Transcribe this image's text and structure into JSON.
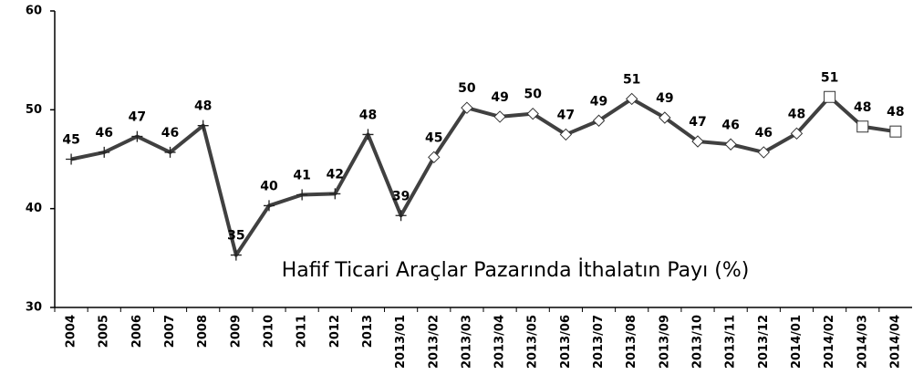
{
  "chart_data": {
    "type": "line",
    "annotation": "Hafif Ticari Araçlar Pazarında İthalatın Payı (%)",
    "categories": [
      "2004",
      "2005",
      "2006",
      "2007",
      "2008",
      "2009",
      "2010",
      "2011",
      "2012",
      "2013",
      "2013/01",
      "2013/02",
      "2013/03",
      "2013/04",
      "2013/05",
      "2013/06",
      "2013/07",
      "2013/08",
      "2013/09",
      "2013/10",
      "2013/11",
      "2013/12",
      "2014/01",
      "2014/02",
      "2014/03",
      "2014/04"
    ],
    "values": [
      45.0,
      45.7,
      47.3,
      45.7,
      48.4,
      35.3,
      40.3,
      41.4,
      41.5,
      47.5,
      39.3,
      45.2,
      50.2,
      49.3,
      49.6,
      47.5,
      48.9,
      51.1,
      49.2,
      46.8,
      46.5,
      45.7,
      47.6,
      51.3,
      48.3,
      47.8
    ],
    "value_labels": [
      "45",
      "46",
      "47",
      "46",
      "48",
      "35",
      "40",
      "41",
      "42",
      "48",
      "39",
      "45",
      "50",
      "49",
      "50",
      "47",
      "49",
      "51",
      "49",
      "47",
      "46",
      "46",
      "48",
      "51",
      "48",
      "48"
    ],
    "markers": [
      "plus",
      "plus",
      "plus",
      "plus",
      "plus",
      "plus",
      "plus",
      "plus",
      "plus",
      "plus",
      "plus",
      "diamond",
      "diamond",
      "diamond",
      "diamond",
      "diamond",
      "diamond",
      "diamond",
      "diamond",
      "diamond",
      "diamond",
      "diamond",
      "diamond",
      "square",
      "square",
      "square"
    ],
    "color": "#404040",
    "ylim": [
      30,
      60
    ],
    "yticks": [
      30,
      40,
      50,
      60
    ],
    "grid": false
  }
}
